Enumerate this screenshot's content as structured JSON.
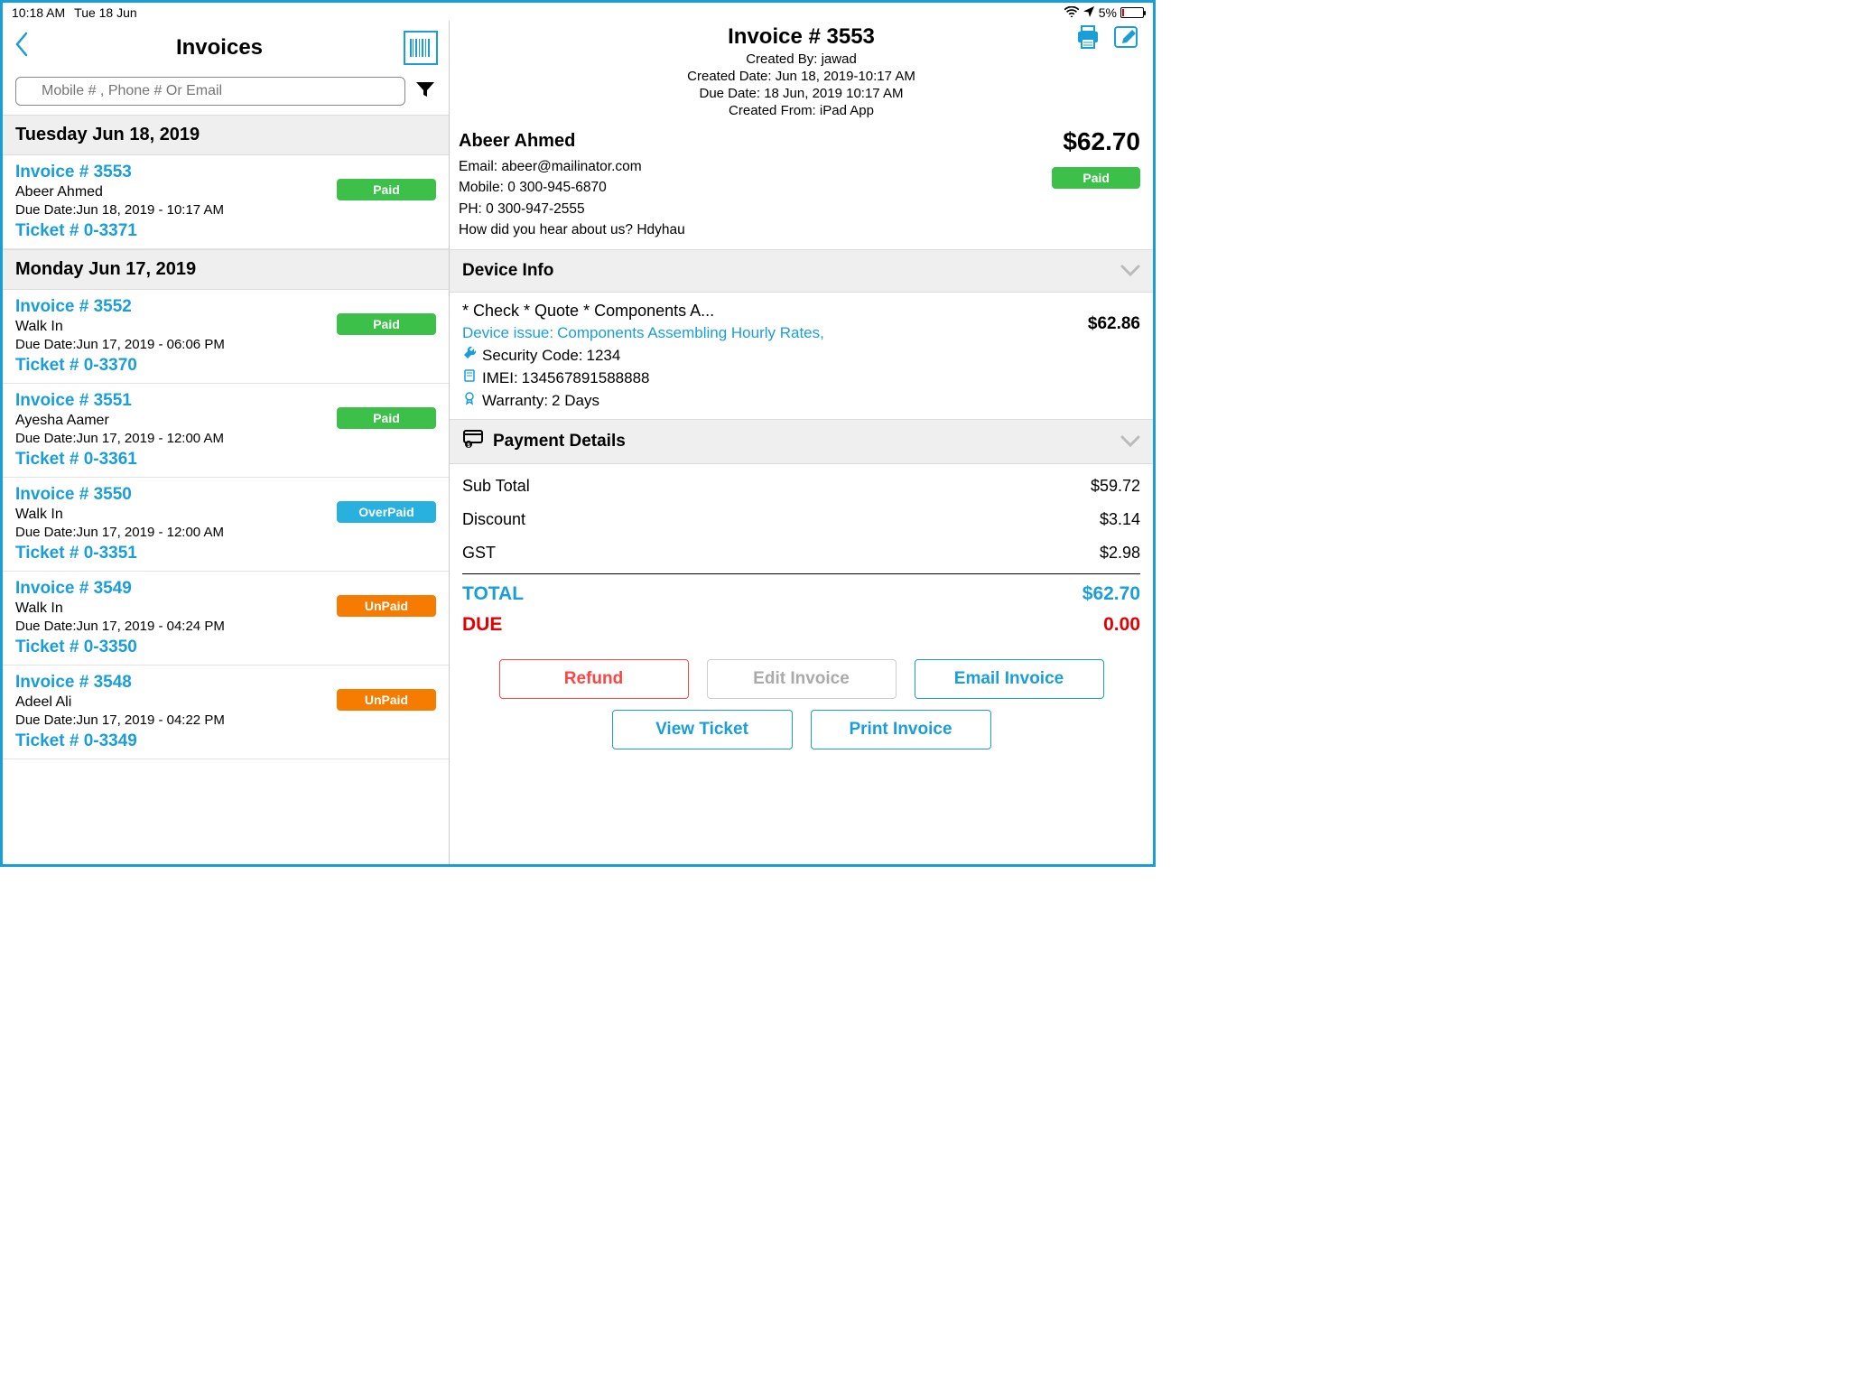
{
  "status_bar": {
    "time": "10:18 AM",
    "date": "Tue 18 Jun",
    "battery_pct": "5%"
  },
  "left": {
    "title": "Invoices",
    "search_placeholder": "Mobile # , Phone # Or Email",
    "groups": [
      {
        "date": "Tuesday Jun 18, 2019",
        "items": [
          {
            "num": "Invoice # 3553",
            "name": "Abeer Ahmed",
            "due_lbl": "Due Date:",
            "due": "Jun 18, 2019 - 10:17 AM",
            "ticket": "Ticket # 0-3371",
            "status": "Paid",
            "status_cls": "paid"
          }
        ]
      },
      {
        "date": "Monday Jun 17, 2019",
        "items": [
          {
            "num": "Invoice # 3552",
            "name": "Walk In",
            "due_lbl": "Due Date:",
            "due": "Jun 17, 2019 - 06:06 PM",
            "ticket": "Ticket # 0-3370",
            "status": "Paid",
            "status_cls": "paid"
          },
          {
            "num": "Invoice # 3551",
            "name": "Ayesha Aamer",
            "due_lbl": "Due Date:",
            "due": "Jun 17, 2019 - 12:00 AM",
            "ticket": "Ticket # 0-3361",
            "status": "Paid",
            "status_cls": "paid"
          },
          {
            "num": "Invoice # 3550",
            "name": "Walk In",
            "due_lbl": "Due Date:",
            "due": "Jun 17, 2019 - 12:00 AM",
            "ticket": "Ticket # 0-3351",
            "status": "OverPaid",
            "status_cls": "overpaid"
          },
          {
            "num": "Invoice # 3549",
            "name": "Walk In",
            "due_lbl": "Due Date:",
            "due": "Jun 17, 2019 - 04:24 PM",
            "ticket": "Ticket # 0-3350",
            "status": "UnPaid",
            "status_cls": "unpaid"
          },
          {
            "num": "Invoice # 3548",
            "name": "Adeel  Ali",
            "due_lbl": "Due Date:",
            "due": "Jun 17, 2019 - 04:22 PM",
            "ticket": "Ticket # 0-3349",
            "status": "UnPaid",
            "status_cls": "unpaid"
          }
        ]
      }
    ]
  },
  "right": {
    "title": "Invoice #  3553",
    "created_by_lbl": "Created By:",
    "created_by": "jawad",
    "created_date_lbl": "Created Date:",
    "created_date": "Jun 18, 2019-10:17 AM",
    "due_date_lbl": "Due Date:",
    "due_date": "18 Jun, 2019 10:17 AM",
    "created_from_lbl": "Created From:",
    "created_from": "iPad App",
    "customer": {
      "name": "Abeer Ahmed",
      "email_lbl": "Email:",
      "email": "abeer@mailinator.com",
      "mobile_lbl": "Mobile:",
      "mobile": "0 300-945-6870",
      "ph_lbl": "PH:",
      "ph": "0 300-947-2555",
      "hear_lbl": "How did you hear about us?",
      "hear": "Hdyhau",
      "total": "$62.70",
      "badge": "Paid"
    },
    "device_section": "Device Info",
    "device": {
      "title": "* Check * Quote * Components A...",
      "issue_lbl": "Device issue:",
      "issue": "Components Assembling Hourly Rates,",
      "sec_lbl": "Security Code:",
      "sec": "1234",
      "imei_lbl": "IMEI:",
      "imei": "134567891588888",
      "warranty_lbl": "Warranty:",
      "warranty": "2 Days",
      "price": "$62.86"
    },
    "payment_section": "Payment Details",
    "payment": {
      "sub_lbl": "Sub Total",
      "sub": "$59.72",
      "disc_lbl": "Discount",
      "disc": "$3.14",
      "gst_lbl": "GST",
      "gst": "$2.98",
      "total_lbl": "TOTAL",
      "total": "$62.70",
      "due_lbl": "DUE",
      "due": "0.00"
    },
    "buttons": {
      "refund": "Refund",
      "edit": "Edit Invoice",
      "email": "Email Invoice",
      "view": "View Ticket",
      "print": "Print Invoice"
    }
  }
}
